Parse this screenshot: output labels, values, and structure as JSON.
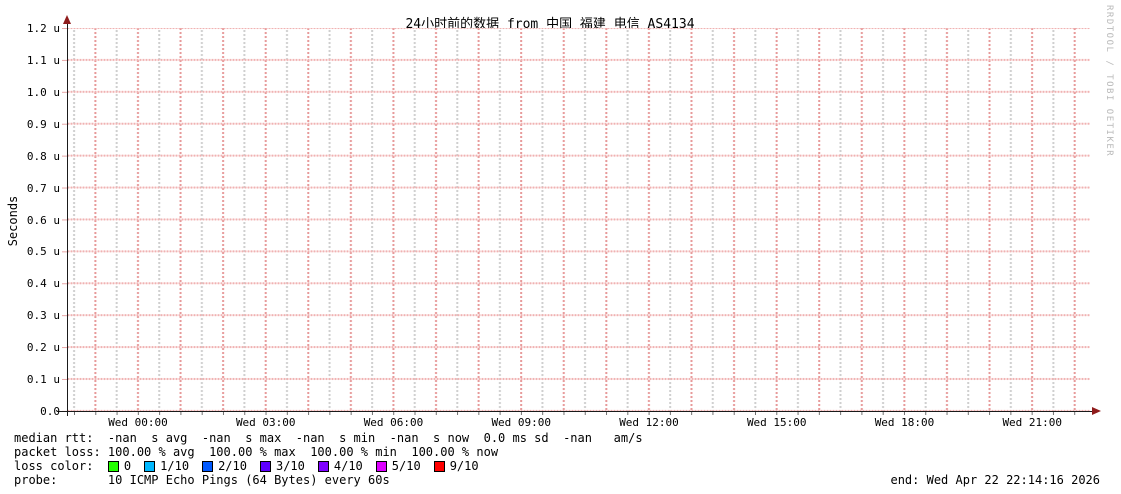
{
  "watermark": "RRDTOOL / TOBI OETIKER",
  "chart_data": {
    "type": "line",
    "title": "24小时前的数据 from 中国 福建 电信 AS4134",
    "xlabel": "",
    "ylabel": "Seconds",
    "ylim": [
      0,
      1.2e-06
    ],
    "grid": true,
    "legend_position": "bottom",
    "yticks": [
      "1.2 u",
      "1.1 u",
      "1.0 u",
      "0.9 u",
      "0.8 u",
      "0.7 u",
      "0.6 u",
      "0.5 u",
      "0.4 u",
      "0.3 u",
      "0.2 u",
      "0.1 u",
      "0.0"
    ],
    "xticks": [
      "Wed 00:00",
      "Wed 03:00",
      "Wed 06:00",
      "Wed 09:00",
      "Wed 12:00",
      "Wed 15:00",
      "Wed 18:00",
      "Wed 21:00"
    ],
    "series": [],
    "stats": {
      "median_rtt": {
        "avg": "-nan s",
        "max": "-nan s",
        "min": "-nan s",
        "now": "-nan s",
        "sd": "0.0 ms",
        "am_per_s": "-nan"
      },
      "packet_loss": {
        "avg": "100.00 %",
        "max": "100.00 %",
        "min": "100.00 %",
        "now": "100.00 %"
      }
    }
  },
  "legend": {
    "median_rtt_line": "median rtt:  -nan  s avg  -nan  s max  -nan  s min  -nan  s now  0.0 ms sd  -nan   am/s",
    "packet_loss_line": "packet loss: 100.00 % avg  100.00 % max  100.00 % min  100.00 % now",
    "loss_color_label": "loss color:  ",
    "loss_colors": [
      {
        "label": "0",
        "color": "#24ff00"
      },
      {
        "label": "1/10",
        "color": "#00b8ff"
      },
      {
        "label": "2/10",
        "color": "#0059ff"
      },
      {
        "label": "3/10",
        "color": "#5e00ff"
      },
      {
        "label": "4/10",
        "color": "#7e00ff"
      },
      {
        "label": "5/10",
        "color": "#dd00ff"
      },
      {
        "label": "9/10",
        "color": "#ff0000"
      }
    ],
    "probe_line": "probe:       10 ICMP Echo Pings (64 Bytes) every 60s",
    "end_line": "end: Wed Apr 22 22:14:16 2026"
  }
}
